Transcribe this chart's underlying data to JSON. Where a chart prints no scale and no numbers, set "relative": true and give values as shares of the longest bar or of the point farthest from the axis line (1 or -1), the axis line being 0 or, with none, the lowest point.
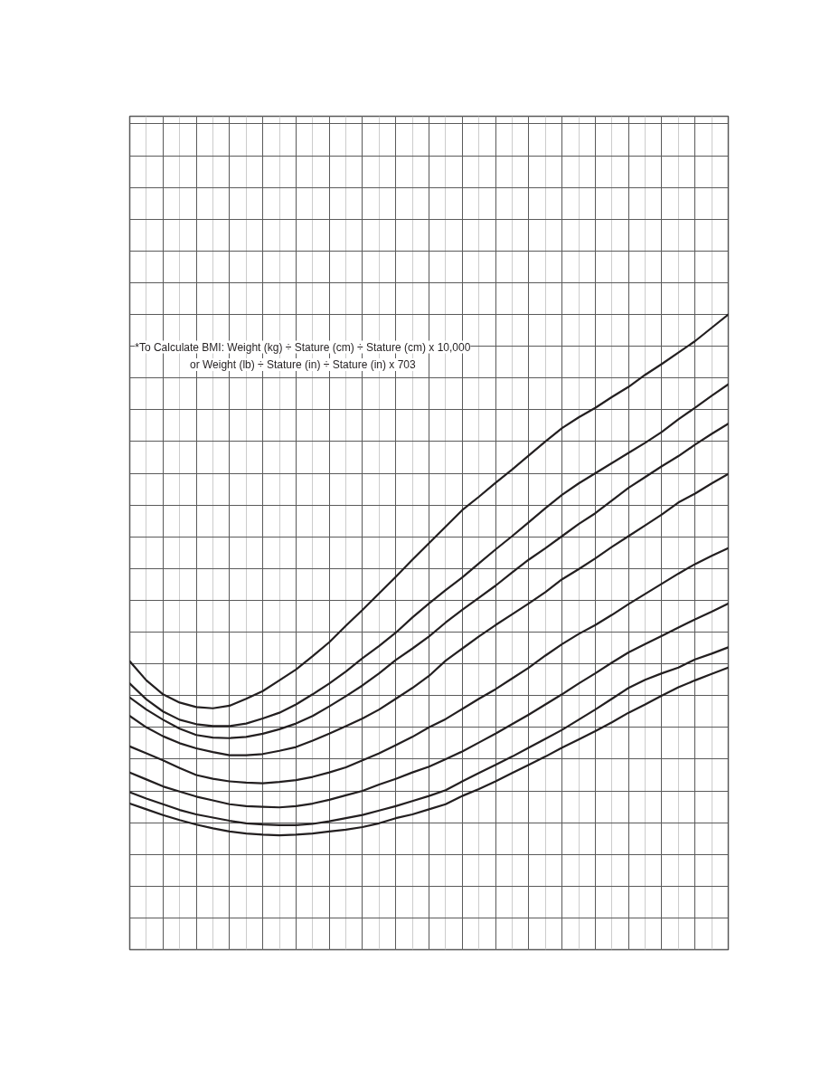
{
  "chart_data": {
    "type": "line",
    "relative": true,
    "grid": true,
    "line_style": "solid",
    "categories": [
      null,
      null,
      null,
      null,
      null,
      null,
      null,
      null,
      null,
      null,
      null,
      null,
      null,
      null,
      null,
      null,
      null,
      null,
      null,
      null,
      null,
      null,
      null,
      null,
      null,
      null,
      null,
      null,
      null,
      null,
      null,
      null,
      null,
      null,
      null,
      null,
      null
    ],
    "series": [
      {
        "color": "#231f20",
        "values": [
          0.454,
          0.424,
          0.402,
          0.389,
          0.382,
          0.38,
          0.384,
          0.395,
          0.407,
          0.424,
          0.441,
          0.462,
          0.484,
          0.51,
          0.535,
          0.561,
          0.587,
          0.614,
          0.64,
          0.666,
          0.692,
          0.713,
          0.735,
          0.756,
          0.778,
          0.8,
          0.821,
          0.838,
          0.853,
          0.87,
          0.886,
          0.905,
          0.922,
          0.94,
          0.958,
          0.979,
          1.0
        ]
      },
      {
        "color": "#231f20",
        "values": [
          0.419,
          0.394,
          0.375,
          0.362,
          0.355,
          0.352,
          0.352,
          0.356,
          0.364,
          0.373,
          0.386,
          0.402,
          0.419,
          0.438,
          0.459,
          0.478,
          0.499,
          0.523,
          0.545,
          0.566,
          0.586,
          0.608,
          0.63,
          0.651,
          0.673,
          0.695,
          0.716,
          0.734,
          0.75,
          0.766,
          0.782,
          0.798,
          0.815,
          0.835,
          0.853,
          0.872,
          0.89
        ]
      },
      {
        "color": "#231f20",
        "values": [
          0.397,
          0.378,
          0.362,
          0.348,
          0.338,
          0.334,
          0.333,
          0.335,
          0.34,
          0.347,
          0.356,
          0.368,
          0.383,
          0.399,
          0.416,
          0.435,
          0.456,
          0.474,
          0.493,
          0.515,
          0.535,
          0.554,
          0.573,
          0.594,
          0.614,
          0.632,
          0.651,
          0.67,
          0.687,
          0.707,
          0.727,
          0.744,
          0.761,
          0.777,
          0.795,
          0.812,
          0.828
        ]
      },
      {
        "color": "#231f20",
        "values": [
          0.368,
          0.35,
          0.336,
          0.325,
          0.317,
          0.311,
          0.306,
          0.306,
          0.308,
          0.313,
          0.319,
          0.329,
          0.34,
          0.352,
          0.364,
          0.378,
          0.395,
          0.412,
          0.431,
          0.455,
          0.474,
          0.493,
          0.511,
          0.528,
          0.545,
          0.563,
          0.583,
          0.599,
          0.616,
          0.634,
          0.651,
          0.668,
          0.685,
          0.704,
          0.718,
          0.734,
          0.749
        ]
      },
      {
        "color": "#231f20",
        "values": [
          0.32,
          0.309,
          0.298,
          0.286,
          0.275,
          0.269,
          0.265,
          0.263,
          0.262,
          0.264,
          0.267,
          0.272,
          0.279,
          0.287,
          0.298,
          0.309,
          0.322,
          0.335,
          0.35,
          0.363,
          0.379,
          0.395,
          0.41,
          0.427,
          0.444,
          0.463,
          0.481,
          0.497,
          0.511,
          0.527,
          0.544,
          0.56,
          0.576,
          0.592,
          0.607,
          0.62,
          0.632
        ]
      },
      {
        "color": "#231f20",
        "values": [
          0.279,
          0.268,
          0.257,
          0.249,
          0.241,
          0.235,
          0.229,
          0.226,
          0.225,
          0.224,
          0.226,
          0.23,
          0.236,
          0.243,
          0.25,
          0.26,
          0.269,
          0.279,
          0.288,
          0.3,
          0.312,
          0.326,
          0.34,
          0.355,
          0.37,
          0.386,
          0.402,
          0.419,
          0.435,
          0.452,
          0.468,
          0.481,
          0.494,
          0.507,
          0.52,
          0.532,
          0.545
        ]
      },
      {
        "color": "#231f20",
        "values": [
          0.248,
          0.238,
          0.229,
          0.22,
          0.213,
          0.208,
          0.203,
          0.199,
          0.197,
          0.196,
          0.196,
          0.198,
          0.202,
          0.207,
          0.212,
          0.219,
          0.226,
          0.234,
          0.242,
          0.251,
          0.265,
          0.278,
          0.291,
          0.304,
          0.318,
          0.332,
          0.346,
          0.362,
          0.378,
          0.395,
          0.412,
          0.425,
          0.435,
          0.444,
          0.457,
          0.466,
          0.476
        ]
      },
      {
        "color": "#231f20",
        "values": [
          0.23,
          0.221,
          0.212,
          0.204,
          0.197,
          0.191,
          0.186,
          0.183,
          0.181,
          0.18,
          0.181,
          0.183,
          0.186,
          0.189,
          0.193,
          0.199,
          0.207,
          0.213,
          0.221,
          0.229,
          0.242,
          0.253,
          0.265,
          0.278,
          0.291,
          0.304,
          0.318,
          0.331,
          0.344,
          0.358,
          0.373,
          0.386,
          0.4,
          0.413,
          0.424,
          0.434,
          0.444
        ]
      }
    ],
    "annotations": [
      "*To Calculate BMI: Weight (kg) ÷ Stature (cm) ÷ Stature (cm) x 10,000",
      "or Weight (lb) ÷ Stature (in) ÷ Stature (in) x 703"
    ]
  }
}
